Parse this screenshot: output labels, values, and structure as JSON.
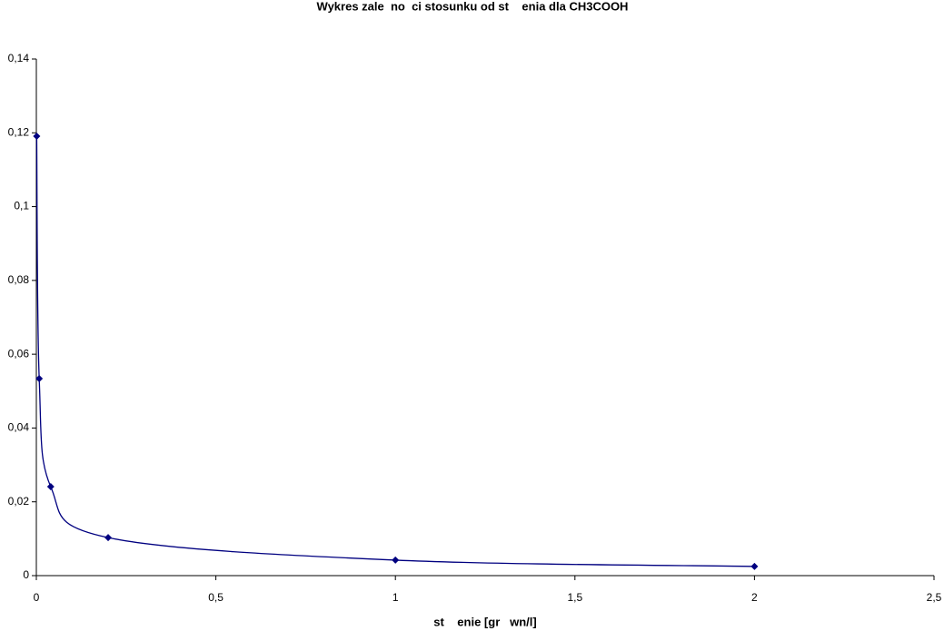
{
  "chart_data": {
    "type": "scatter",
    "title": "Wykres zale  no  ci stosunku od st    enia dla CH3COOH",
    "x_label": "st    enie [gr   wn/l]",
    "series": [
      {
        "color": "#000080",
        "x": [
          0.001,
          0.008,
          0.04,
          0.2,
          1,
          2
        ],
        "values": [
          0.1191,
          0.0534,
          0.0241,
          0.0103,
          0.0042,
          0.0025
        ]
      }
    ],
    "smooth": true,
    "xlim": [
      0,
      2.5
    ],
    "xticks": [
      0,
      {
        "value": 0.5,
        "label": "0,5"
      },
      1,
      {
        "value": 1.5,
        "label": "1,5"
      },
      2,
      {
        "value": 2.5,
        "label": "2,5"
      }
    ],
    "ylim": [
      0,
      0.14
    ],
    "yticks": [
      0,
      {
        "value": 0.02,
        "label": "0,02"
      },
      {
        "value": 0.04,
        "label": "0,04"
      },
      {
        "value": 0.06,
        "label": "0,06"
      },
      {
        "value": 0.08,
        "label": "0,08"
      },
      {
        "value": 0.1,
        "label": "0,1"
      },
      {
        "value": 0.12,
        "label": "0,12"
      },
      {
        "value": 0.14,
        "label": "0,14"
      }
    ],
    "grid": false
  }
}
